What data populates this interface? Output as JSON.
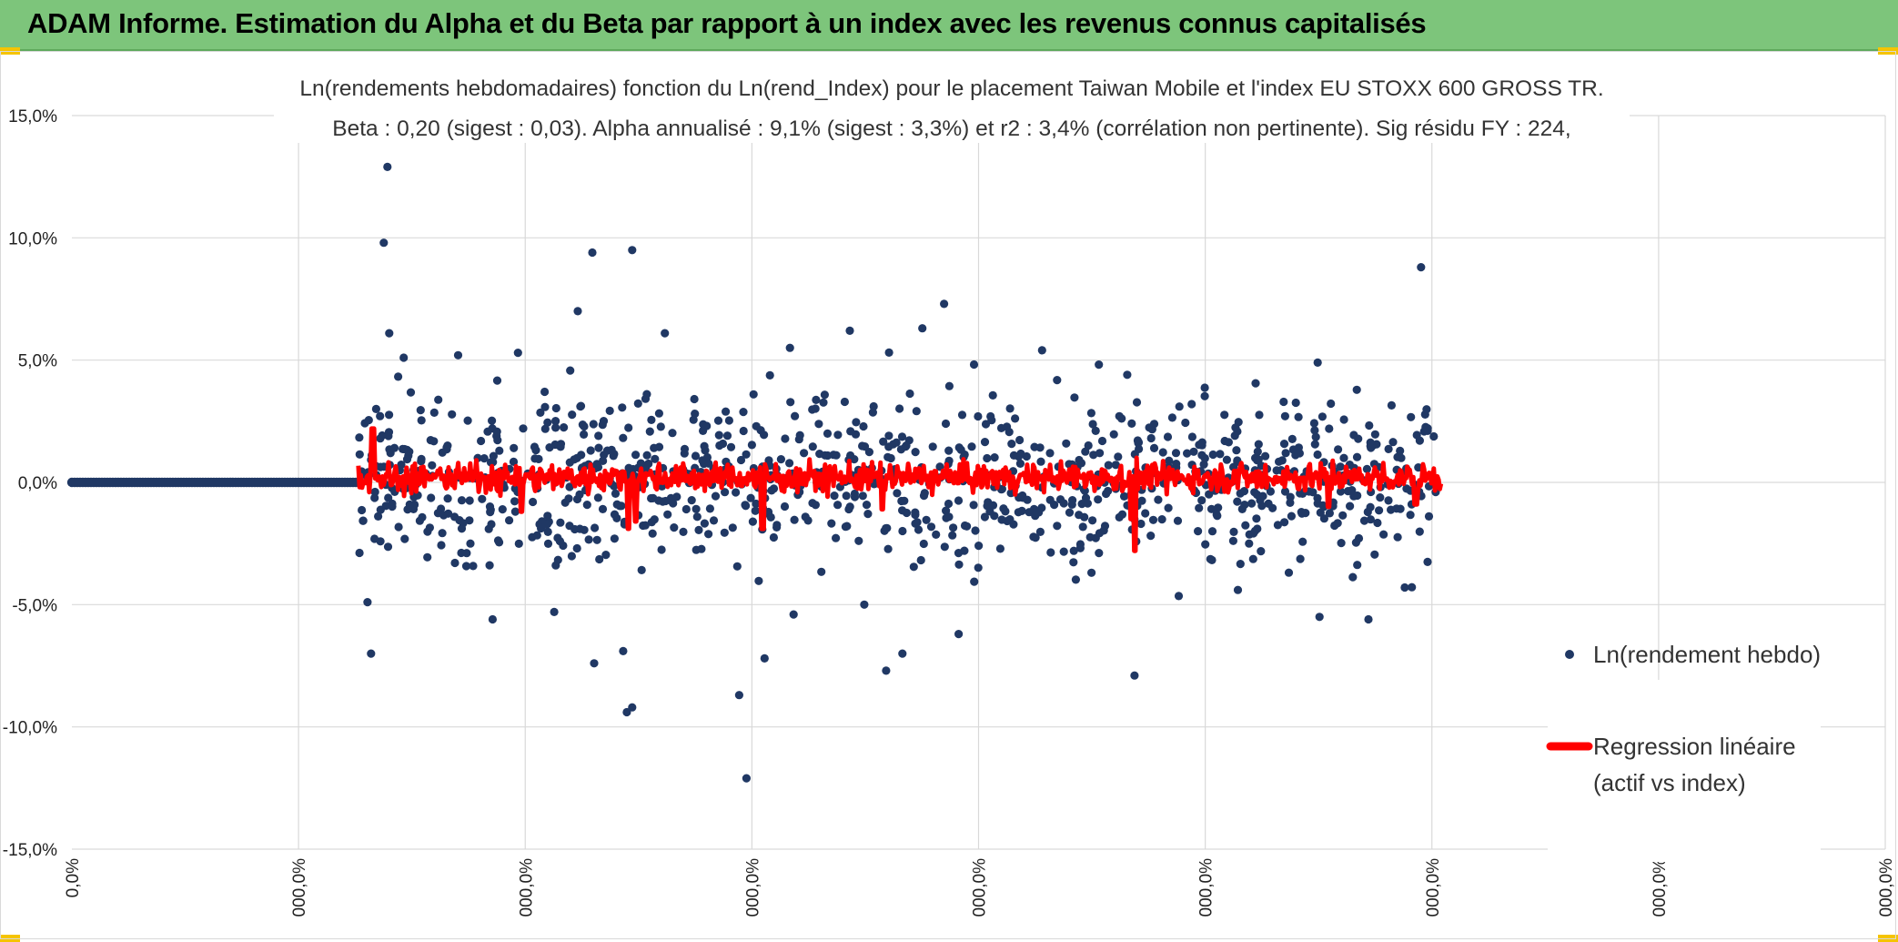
{
  "header": {
    "title": "ADAM Informe. Estimation du Alpha et du Beta par rapport à un index avec les revenus connus capitalisés",
    "color": "#7dc57b"
  },
  "chart_data": {
    "type": "scatter",
    "title_line1": "Ln(rendements hebdomadaires) fonction du Ln(rend_Index) pour le placement Taiwan Mobile  et l'index EU STOXX 600 GROSS TR.",
    "title_line2": "Beta : 0,20 (sigest : 0,03). Alpha annualisé : 9,1% (sigest : 3,3%) et r2 : 3,4% (corrélation non pertinente). Sig résidu FY : 224,",
    "y_ticks": [
      "15,0%",
      "10,0%",
      "5,0%",
      "0,0%",
      "-5,0%",
      "-10,0%",
      "-15,0%"
    ],
    "y_tick_values": [
      15,
      10,
      5,
      0,
      -5,
      -10,
      -15
    ],
    "ylim": [
      -15,
      15
    ],
    "x_ticks": [
      "0,0%",
      "000,0%",
      "000,0%",
      "000,0%",
      "000,0%",
      "000,0%",
      "000,0%",
      "000,0%",
      "000,0%"
    ],
    "grid": true,
    "legend_position": "right",
    "series": [
      {
        "name": "Ln(rendement hebdo)",
        "color": "#203864",
        "marker": "circle",
        "flat_segment": {
          "x_range": [
            0,
            0.158
          ],
          "y": 0
        },
        "x_range": [
          0.158,
          0.755
        ],
        "outliers": [
          [
            0.174,
            12.9
          ],
          [
            0.172,
            9.8
          ],
          [
            0.175,
            6.1
          ],
          [
            0.287,
            9.4
          ],
          [
            0.309,
            9.5
          ],
          [
            0.279,
            7.0
          ],
          [
            0.481,
            7.3
          ],
          [
            0.469,
            6.3
          ],
          [
            0.429,
            6.2
          ],
          [
            0.327,
            6.1
          ],
          [
            0.744,
            8.8
          ],
          [
            0.687,
            4.9
          ],
          [
            0.535,
            5.4
          ],
          [
            0.582,
            4.4
          ],
          [
            0.396,
            5.5
          ],
          [
            0.213,
            5.2
          ],
          [
            0.246,
            5.3
          ],
          [
            0.183,
            5.1
          ],
          [
            0.163,
            -4.9
          ],
          [
            0.165,
            -7.0
          ],
          [
            0.306,
            -9.4
          ],
          [
            0.309,
            -9.2
          ],
          [
            0.304,
            -6.9
          ],
          [
            0.288,
            -7.4
          ],
          [
            0.372,
            -12.1
          ],
          [
            0.382,
            -7.2
          ],
          [
            0.368,
            -8.7
          ],
          [
            0.449,
            -7.7
          ],
          [
            0.489,
            -6.2
          ],
          [
            0.458,
            -7.0
          ],
          [
            0.586,
            -7.9
          ],
          [
            0.688,
            -5.5
          ],
          [
            0.715,
            -5.6
          ],
          [
            0.643,
            -4.4
          ],
          [
            0.735,
            -4.3
          ],
          [
            0.232,
            -5.6
          ],
          [
            0.266,
            -5.3
          ],
          [
            0.398,
            -5.4
          ],
          [
            0.437,
            -5.0
          ]
        ],
        "bulk_sigma": 1.7,
        "approx_count": 1050
      },
      {
        "name": "Regression linéaire\n(actif vs index)",
        "legend_line1": "Regression linéaire",
        "legend_line2": "(actif vs index)",
        "color": "#ff0000",
        "type": "line",
        "x_range": [
          0.158,
          0.755
        ],
        "y_center": 0.2,
        "spikes": [
          [
            0.166,
            2.2
          ],
          [
            0.307,
            -1.9
          ],
          [
            0.311,
            -1.6
          ],
          [
            0.381,
            -1.9
          ],
          [
            0.586,
            -2.8
          ],
          [
            0.584,
            -1.5
          ],
          [
            0.447,
            -1.1
          ],
          [
            0.693,
            -1.0
          ],
          [
            0.741,
            -0.9
          ],
          [
            0.248,
            -1.2
          ]
        ]
      }
    ]
  }
}
